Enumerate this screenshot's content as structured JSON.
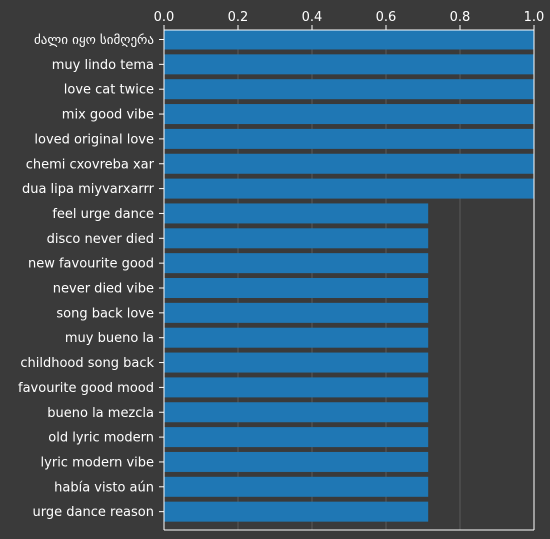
{
  "chart_data": {
    "type": "bar",
    "orientation": "horizontal",
    "categories": [
      "ძალი იყო სიმღერა",
      "muy lindo tema",
      "love cat twice",
      "mix good vibe",
      "loved original love",
      "chemi cxovreba xar",
      "dua lipa miyvarxarrr",
      "feel urge dance",
      "disco never died",
      "new favourite good",
      "never died vibe",
      "song back love",
      "muy bueno la",
      "childhood song back",
      "favourite good mood",
      "bueno la mezcla",
      "old lyric modern",
      "lyric modern vibe",
      "había visto aún",
      "urge dance reason"
    ],
    "values": [
      1.0,
      1.0,
      1.0,
      1.0,
      1.0,
      1.0,
      1.0,
      0.714,
      0.714,
      0.714,
      0.714,
      0.714,
      0.714,
      0.714,
      0.714,
      0.714,
      0.714,
      0.714,
      0.714,
      0.714
    ],
    "xlim": [
      0,
      1.0
    ],
    "xticks": [
      "0.0",
      "0.2",
      "0.4",
      "0.6",
      "0.8",
      "1.0"
    ],
    "x_axis_position": "top",
    "grid": "vertical",
    "bar_color": "#1f77b4",
    "background_color": "#3a3a3a",
    "grid_color": "#5a5a5a",
    "text_color": "#ffffff"
  }
}
